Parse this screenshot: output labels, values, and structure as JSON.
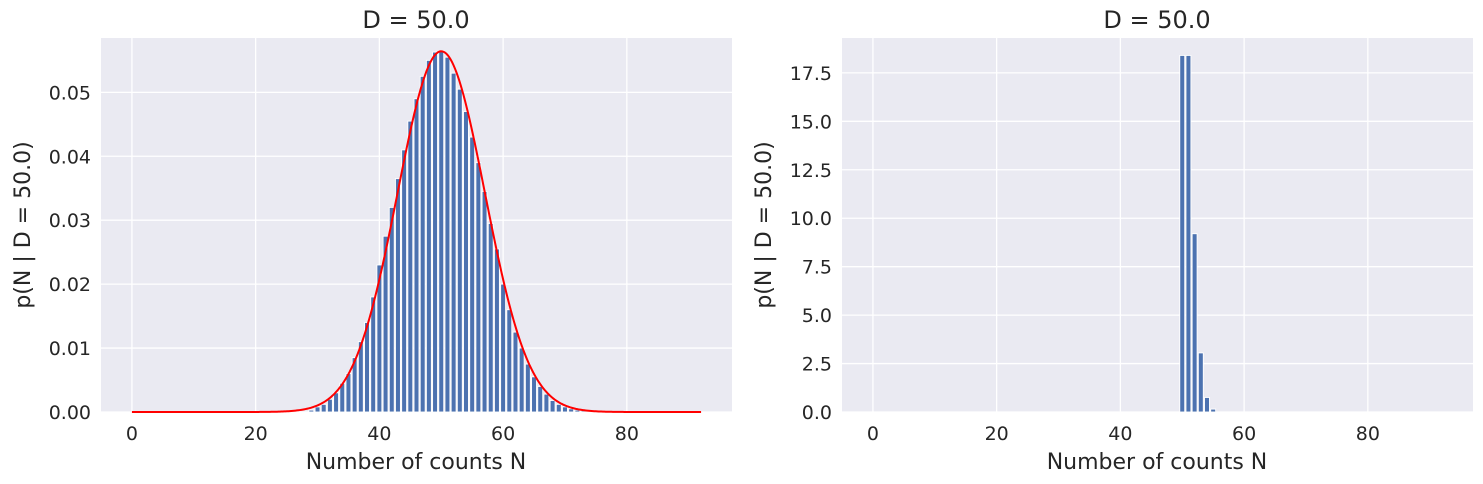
{
  "figure": {
    "background": "#ffffff",
    "plot_background": "#eaeaf2",
    "bar_color": "#4c72b0",
    "curve_color": "#ff0000"
  },
  "chart_data": [
    {
      "type": "bar",
      "title": "D = 50.0",
      "xlabel": "Number of counts N",
      "ylabel": "p(N | D = 50.0)",
      "xlim": [
        -5,
        97
      ],
      "ylim": [
        0,
        0.0585
      ],
      "xticks": [
        0,
        20,
        40,
        60,
        80
      ],
      "xtick_labels": [
        "0",
        "20",
        "40",
        "60",
        "80"
      ],
      "yticks": [
        0,
        0.01,
        0.02,
        0.03,
        0.04,
        0.05
      ],
      "ytick_labels": [
        "0.00",
        "0.01",
        "0.02",
        "0.03",
        "0.04",
        "0.05"
      ],
      "grid": true,
      "bar_width": 0.8,
      "bars": {
        "x": [
          29,
          30,
          31,
          32,
          33,
          34,
          35,
          36,
          37,
          38,
          39,
          40,
          41,
          42,
          43,
          44,
          45,
          46,
          47,
          48,
          49,
          50,
          51,
          52,
          53,
          54,
          55,
          56,
          57,
          58,
          59,
          60,
          61,
          62,
          63,
          64,
          65,
          66,
          67,
          68,
          69,
          70,
          71,
          72,
          73,
          74
        ],
        "values": [
          0.0003,
          0.0008,
          0.0012,
          0.002,
          0.003,
          0.0045,
          0.006,
          0.0085,
          0.011,
          0.014,
          0.018,
          0.023,
          0.0275,
          0.032,
          0.0365,
          0.041,
          0.0455,
          0.049,
          0.0525,
          0.055,
          0.0563,
          0.0565,
          0.0555,
          0.053,
          0.0505,
          0.047,
          0.043,
          0.039,
          0.0345,
          0.0295,
          0.0255,
          0.02,
          0.016,
          0.0125,
          0.01,
          0.0075,
          0.0055,
          0.004,
          0.0028,
          0.0018,
          0.0012,
          0.0008,
          0.0005,
          0.0003,
          0.0002,
          0.0001
        ]
      },
      "curve": {
        "type": "gaussian",
        "mean": 50,
        "std": 7.07,
        "x_range": [
          0,
          92
        ]
      }
    },
    {
      "type": "bar",
      "title": "D = 50.0",
      "xlabel": "Number of counts N",
      "ylabel": "p(N | D = 50.0)",
      "xlim": [
        -5,
        97
      ],
      "ylim": [
        0,
        19.3
      ],
      "xticks": [
        0,
        20,
        40,
        60,
        80
      ],
      "xtick_labels": [
        "0",
        "20",
        "40",
        "60",
        "80"
      ],
      "yticks": [
        0,
        2.5,
        5,
        7.5,
        10,
        12.5,
        15,
        17.5
      ],
      "ytick_labels": [
        "0.0",
        "2.5",
        "5.0",
        "7.5",
        "10.0",
        "12.5",
        "15.0",
        "17.5"
      ],
      "grid": true,
      "bar_width": 0.8,
      "bars": {
        "x": [
          50,
          51,
          52,
          53,
          54,
          55
        ],
        "values": [
          18.4,
          18.4,
          9.2,
          3.05,
          0.75,
          0.15
        ]
      }
    }
  ]
}
